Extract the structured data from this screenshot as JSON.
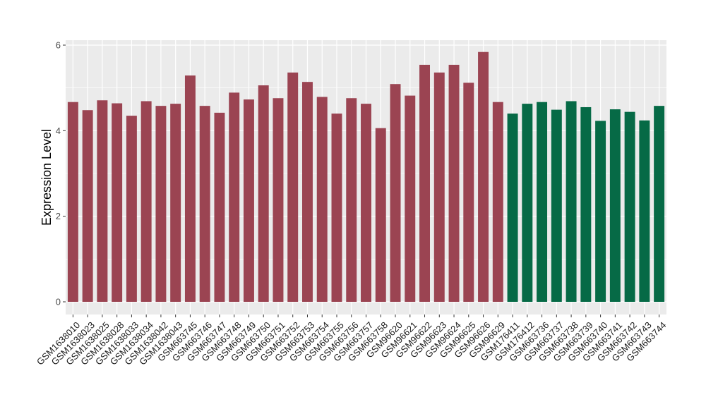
{
  "chart_data": {
    "type": "bar",
    "ylabel": "Expression Level",
    "xlabel": "",
    "ylim": [
      0,
      6
    ],
    "yticks": [
      0,
      2,
      4,
      6
    ],
    "grid": true,
    "colors": {
      "group_a": "#9b4452",
      "group_b": "#066a46",
      "panel": "#ebebeb",
      "gridline": "#ffffff"
    },
    "categories": [
      "GSM1638010",
      "GSM1638023",
      "GSM1638025",
      "GSM1638028",
      "GSM1638033",
      "GSM1638034",
      "GSM1638042",
      "GSM1638043",
      "GSM663745",
      "GSM663746",
      "GSM663747",
      "GSM663748",
      "GSM663749",
      "GSM663750",
      "GSM663751",
      "GSM663752",
      "GSM663753",
      "GSM663754",
      "GSM663755",
      "GSM663756",
      "GSM663757",
      "GSM663758",
      "GSM96620",
      "GSM96621",
      "GSM96622",
      "GSM96623",
      "GSM96624",
      "GSM96625",
      "GSM96626",
      "GSM96629",
      "GSM176411",
      "GSM176412",
      "GSM663736",
      "GSM663737",
      "GSM663738",
      "GSM663739",
      "GSM663740",
      "GSM663741",
      "GSM663742",
      "GSM663743",
      "GSM663744"
    ],
    "values": [
      4.67,
      4.48,
      4.71,
      4.64,
      4.35,
      4.69,
      4.58,
      4.63,
      5.29,
      4.58,
      4.42,
      4.89,
      4.73,
      5.06,
      4.76,
      5.36,
      5.14,
      4.79,
      4.4,
      4.76,
      4.63,
      4.06,
      5.09,
      4.82,
      5.54,
      5.36,
      5.54,
      5.12,
      5.84,
      4.67,
      4.4,
      4.63,
      4.67,
      4.49,
      4.69,
      4.55,
      4.23,
      4.5,
      4.44,
      4.24,
      4.58
    ],
    "groups": [
      "a",
      "a",
      "a",
      "a",
      "a",
      "a",
      "a",
      "a",
      "a",
      "a",
      "a",
      "a",
      "a",
      "a",
      "a",
      "a",
      "a",
      "a",
      "a",
      "a",
      "a",
      "a",
      "a",
      "a",
      "a",
      "a",
      "a",
      "a",
      "a",
      "a",
      "b",
      "b",
      "b",
      "b",
      "b",
      "b",
      "b",
      "b",
      "b",
      "b",
      "b"
    ]
  }
}
